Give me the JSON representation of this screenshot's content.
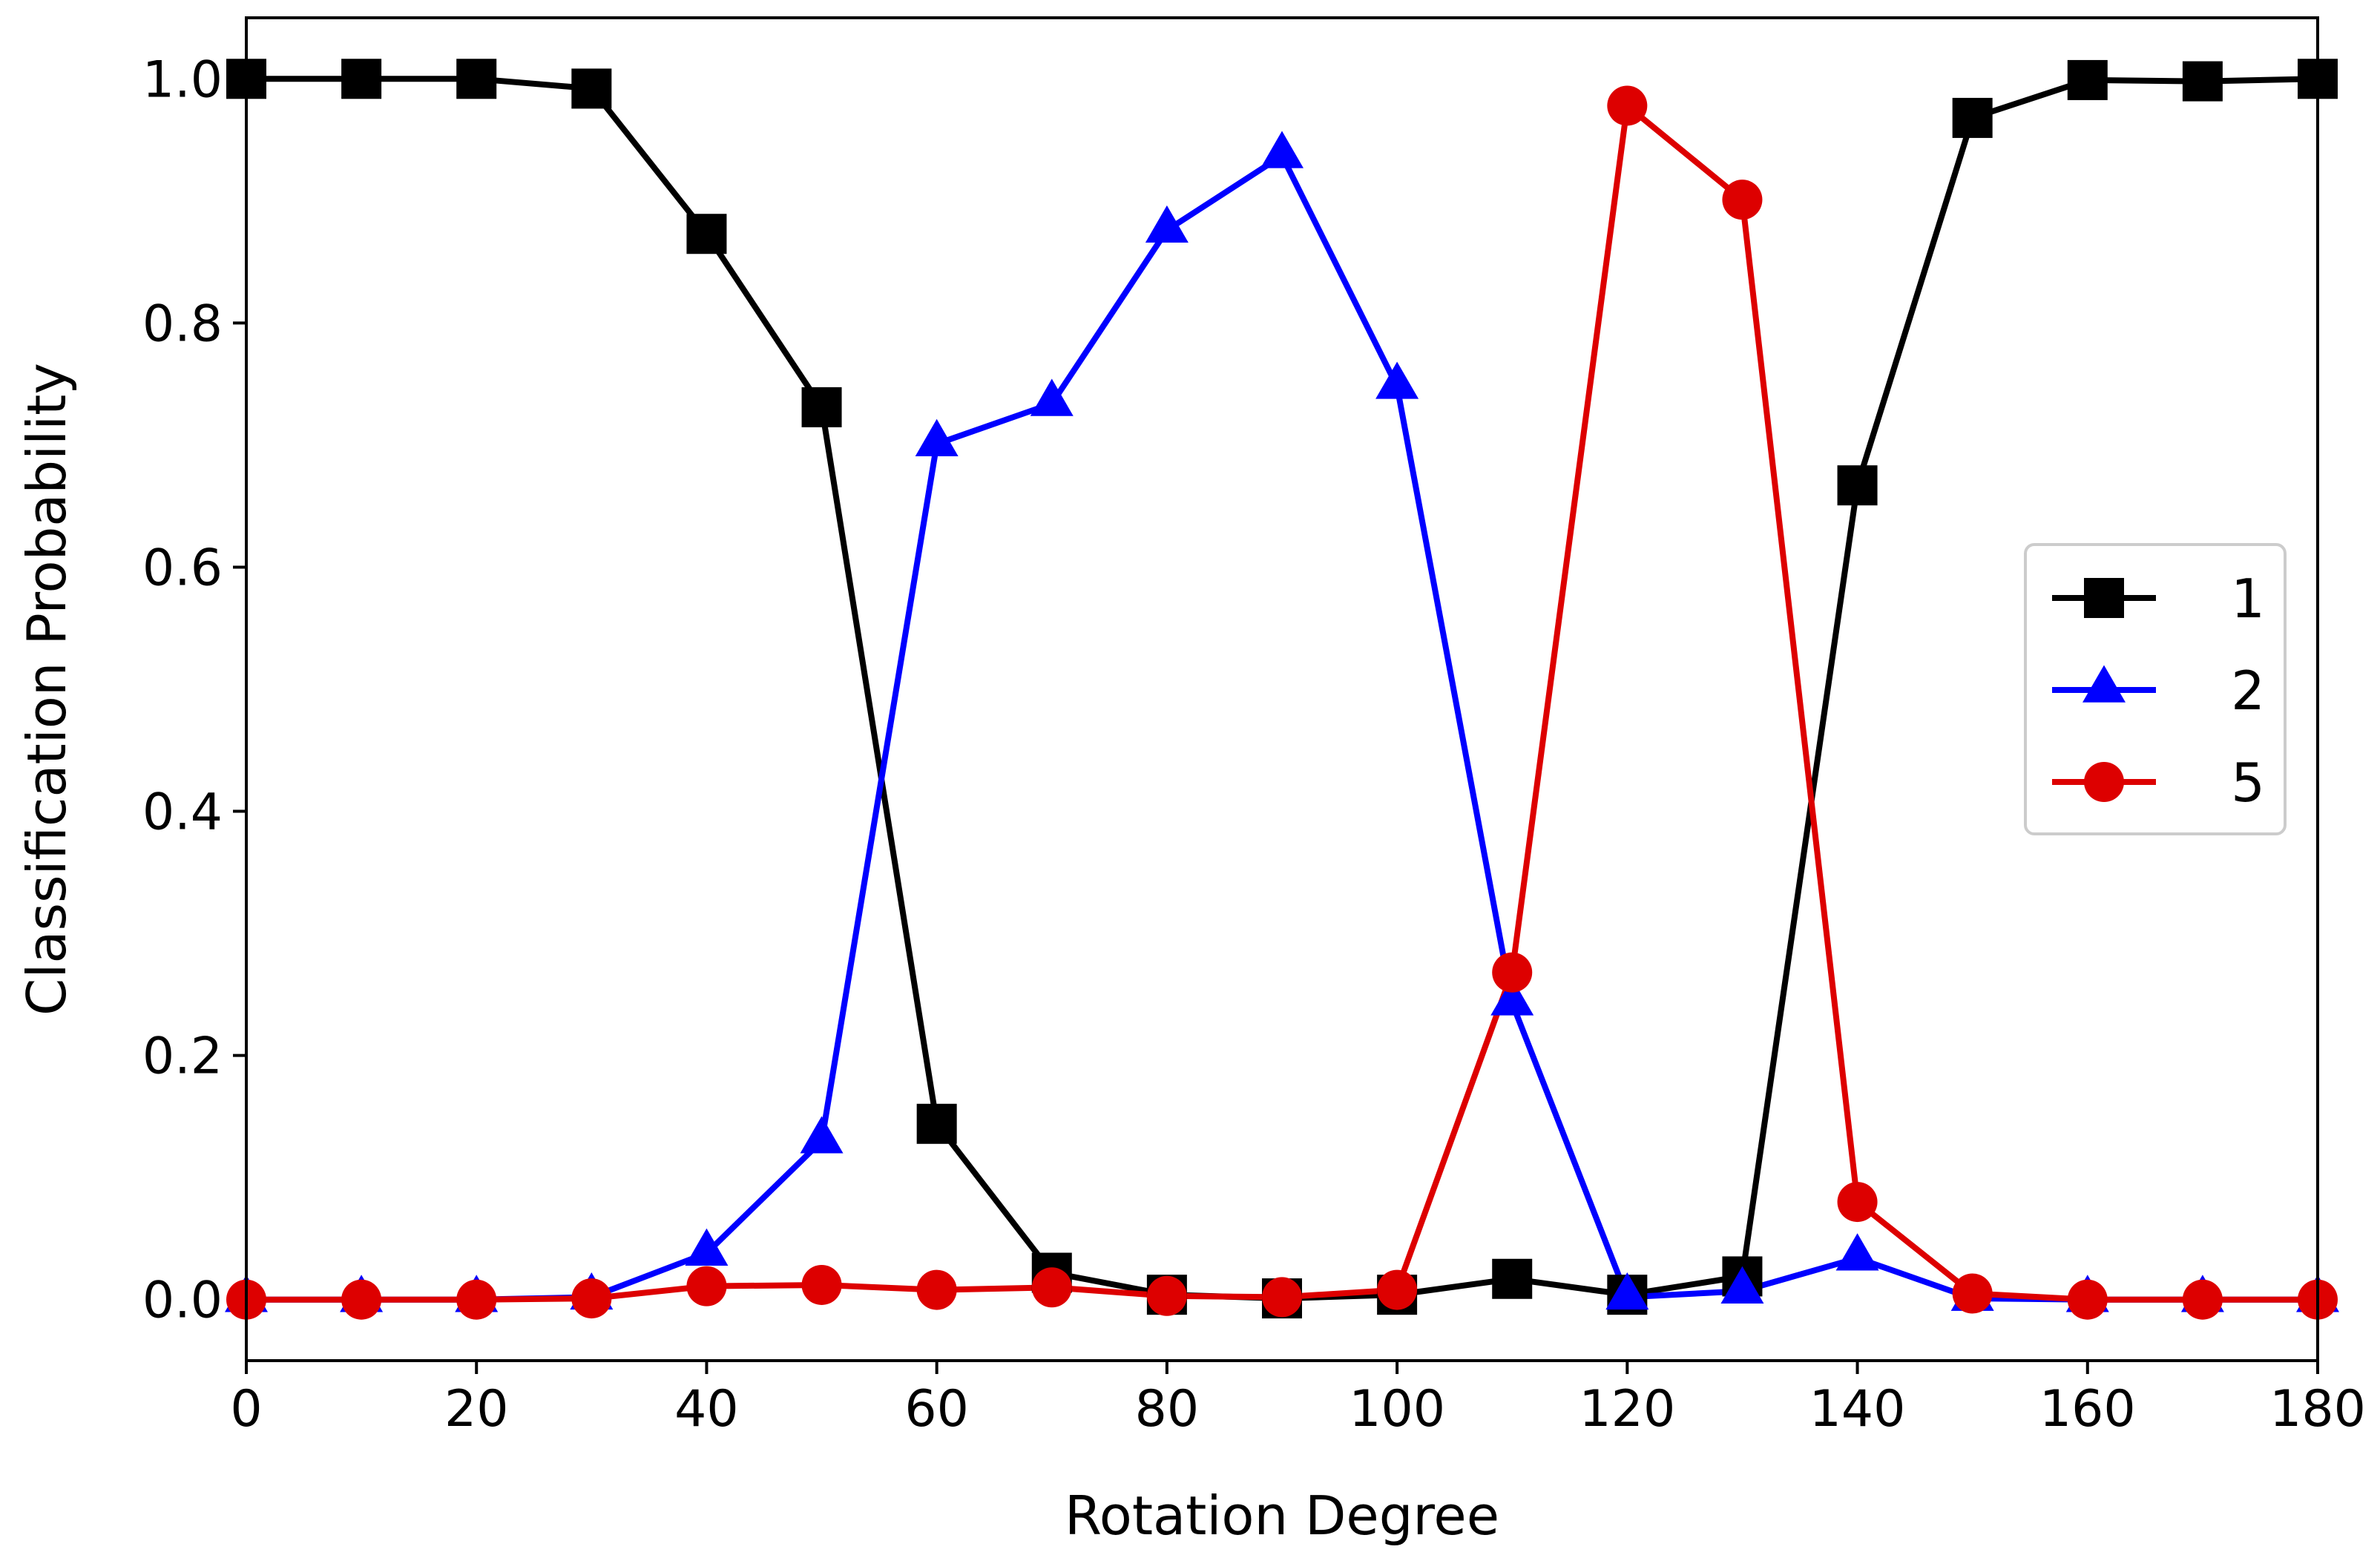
{
  "chart_data": {
    "type": "line",
    "title": "",
    "xlabel": "Rotation Degree",
    "ylabel": "Classification Probability",
    "xlim": [
      0,
      180
    ],
    "ylim": [
      -0.05,
      1.05
    ],
    "xticks": [
      0,
      20,
      40,
      60,
      80,
      100,
      120,
      140,
      160,
      180
    ],
    "yticks": [
      0.0,
      0.2,
      0.4,
      0.6,
      0.8,
      1.0
    ],
    "xtick_labels": [
      "0",
      "20",
      "40",
      "60",
      "80",
      "100",
      "120",
      "140",
      "160",
      "180"
    ],
    "ytick_labels": [
      "0.0",
      "0.2",
      "0.4",
      "0.6",
      "0.8",
      "1.0"
    ],
    "grid": false,
    "legend_position": "center-right",
    "x": [
      0,
      10,
      20,
      30,
      40,
      50,
      60,
      70,
      80,
      90,
      100,
      110,
      120,
      130,
      140,
      150,
      160,
      170,
      180
    ],
    "series": [
      {
        "name": "1",
        "color": "#000000",
        "marker": "square",
        "values": [
          1.0,
          1.0,
          1.0,
          0.992,
          0.873,
          0.731,
          0.144,
          0.022,
          0.004,
          0.001,
          0.004,
          0.017,
          0.004,
          0.019,
          0.667,
          0.968,
          0.999,
          0.998,
          1.0
        ]
      },
      {
        "name": "2",
        "color": "#0000ff",
        "marker": "triangle",
        "values": [
          0.0,
          0.0,
          0.0,
          0.002,
          0.038,
          0.13,
          0.701,
          0.734,
          0.876,
          0.937,
          0.748,
          0.243,
          0.002,
          0.007,
          0.034,
          0.001,
          0.0,
          0.0,
          0.0
        ]
      },
      {
        "name": "5",
        "color": "#dd0000",
        "marker": "circle",
        "values": [
          0.0,
          0.0,
          0.0,
          0.001,
          0.011,
          0.012,
          0.008,
          0.01,
          0.003,
          0.002,
          0.008,
          0.268,
          0.978,
          0.901,
          0.08,
          0.005,
          0.0,
          0.0,
          0.0
        ]
      }
    ]
  }
}
